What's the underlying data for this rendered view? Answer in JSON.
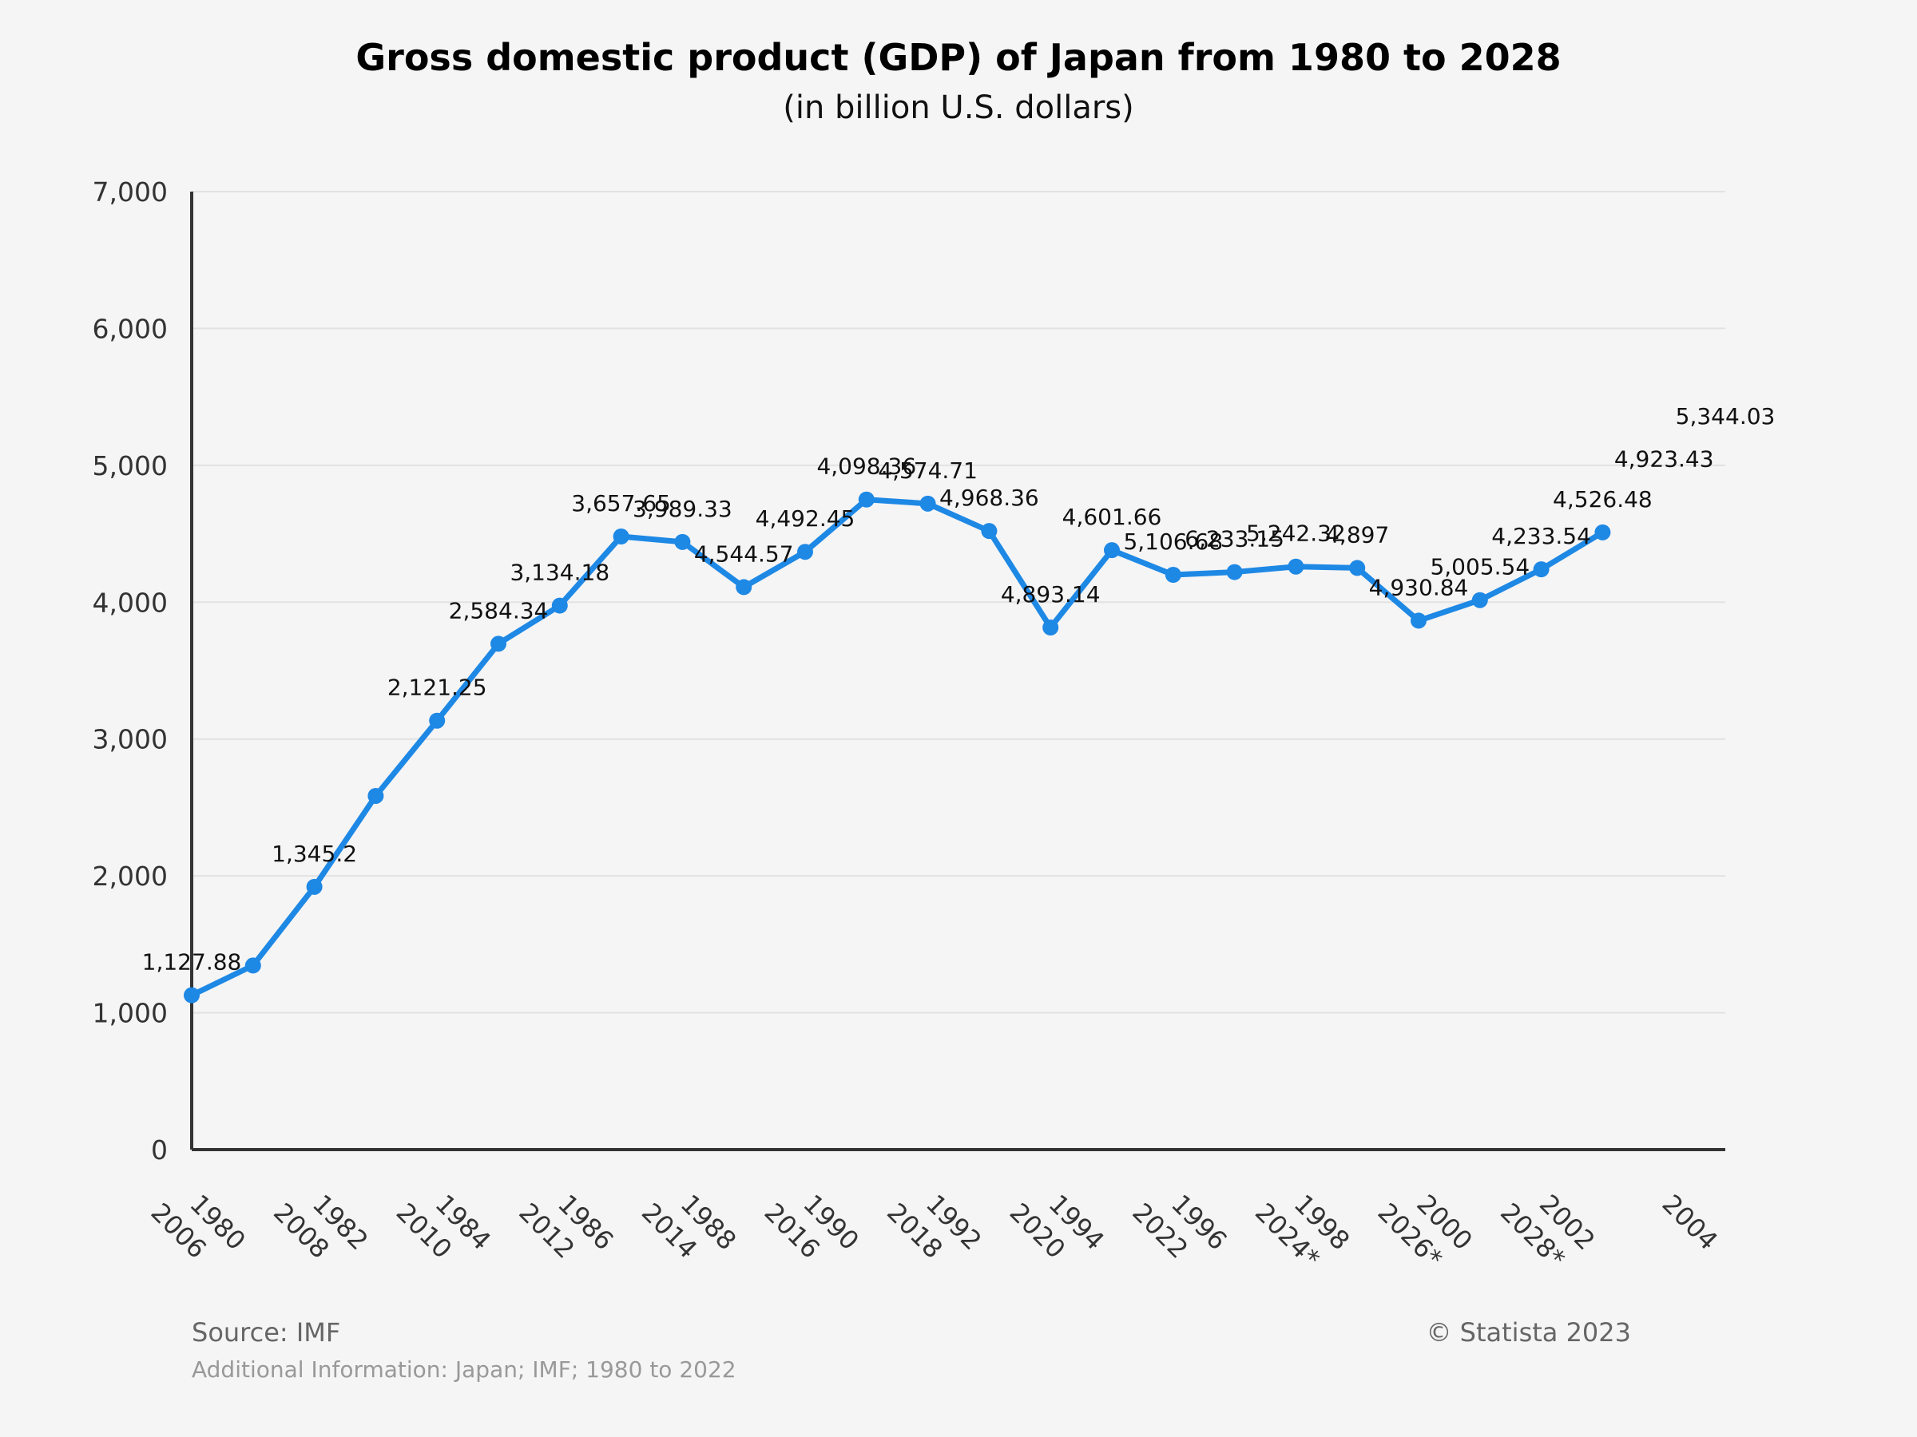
{
  "colors": {
    "background": "#f5f5f5",
    "line": "#1e88e5",
    "grid": "#e2e2e2",
    "axis": "#333333"
  },
  "footer": {
    "source": "Source: IMF",
    "additional": "Additional Information: Japan; IMF; 1980 to 2022",
    "copyright": "© Statista 2023"
  },
  "chart_data": {
    "type": "line",
    "title": "Gross domestic product (GDP) of Japan from 1980 to 2028",
    "subtitle": "(in billion U.S. dollars)",
    "xlabel": "",
    "ylabel": "",
    "ylim": [
      0,
      7000
    ],
    "yticks": [
      "0",
      "1,000",
      "2,000",
      "3,000",
      "4,000",
      "5,000",
      "6,000",
      "7,000"
    ],
    "ytick_values": [
      0,
      1000,
      2000,
      3000,
      4000,
      5000,
      6000,
      7000
    ],
    "grid": true,
    "legend": "none",
    "x_ticks": [
      {
        "top": "1980",
        "bottom": "2006"
      },
      {
        "top": "1982",
        "bottom": "2008"
      },
      {
        "top": "1984",
        "bottom": "2010"
      },
      {
        "top": "1986",
        "bottom": "2012"
      },
      {
        "top": "1988",
        "bottom": "2014"
      },
      {
        "top": "1990",
        "bottom": "2016"
      },
      {
        "top": "1992",
        "bottom": "2018"
      },
      {
        "top": "1994",
        "bottom": "2020"
      },
      {
        "top": "1996",
        "bottom": "2022"
      },
      {
        "top": "1998",
        "bottom": "2024*"
      },
      {
        "top": "2000",
        "bottom": "2026*"
      },
      {
        "top": "2002",
        "bottom": "2028*"
      },
      {
        "top": "2004",
        "bottom": ""
      }
    ],
    "values": [
      1127.88,
      1345.2,
      1920,
      2584.34,
      3134.18,
      3696,
      3975,
      4480,
      4440,
      4110,
      4368,
      4750,
      4720,
      4520,
      3815,
      4380,
      4200,
      4220,
      4260,
      4250,
      3865,
      4015,
      4240,
      4510
    ],
    "data_labels": [
      {
        "text": "1,127.88",
        "index": 0
      },
      {
        "text": "1,345.2",
        "index": 2
      },
      {
        "text": "2,121.25",
        "index": 4
      },
      {
        "text": "2,584.34",
        "index": 5
      },
      {
        "text": "3,134.18",
        "index": 6
      },
      {
        "text": "3,657.65",
        "index": 7
      },
      {
        "text": "3,989.33",
        "index": 8
      },
      {
        "text": "4,544.57",
        "index": 9
      },
      {
        "text": "4,492.45",
        "index": 10
      },
      {
        "text": "4,098.36",
        "index": 11
      },
      {
        "text": "4,574.71",
        "index": 12
      },
      {
        "text": "4,968.36",
        "index": 13
      },
      {
        "text": "4,893.14",
        "index": 14
      },
      {
        "text": "4,601.66",
        "index": 15
      },
      {
        "text": "5,106.68",
        "index": 16
      },
      {
        "text": "6,233.15",
        "index": 17
      },
      {
        "text": "5,242.32",
        "index": 18
      },
      {
        "text": "4,897",
        "index": 19
      },
      {
        "text": "4,930.84",
        "index": 20
      },
      {
        "text": "5,005.54",
        "index": 21
      },
      {
        "text": "4,233.54",
        "index": 22
      },
      {
        "text": "4,526.48",
        "index": 23
      },
      {
        "text": "4,923.43",
        "index": 24
      },
      {
        "text": "5,344.03",
        "index": 25
      }
    ]
  }
}
